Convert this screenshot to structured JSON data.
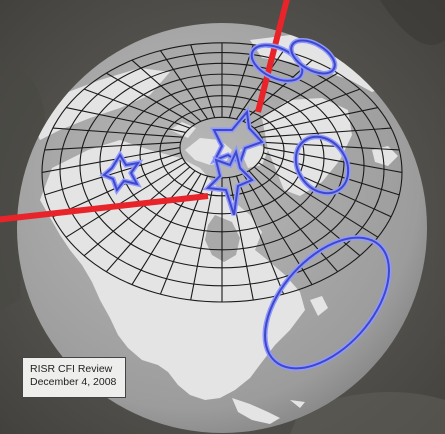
{
  "caption": {
    "line1": "RISR CFI Review",
    "line2": "December 4, 2008"
  },
  "colors": {
    "background_ground": "#55544f",
    "globe_ocean": "#a9a9a9",
    "land": "#e4e4e4",
    "grid_lines": "#1a1a1a",
    "radar_beams": "#e8242a",
    "footprint_outline": "#3f48c8",
    "footprint_glow": "#8f98ff",
    "caption_bg": "#eeeeec"
  },
  "map_elements": {
    "projection": "orthographic globe centered over North America",
    "overlays": [
      "polar-grid",
      "radar-beam-north",
      "radar-beam-west",
      "star-footprints",
      "ellipse-footprints"
    ]
  }
}
